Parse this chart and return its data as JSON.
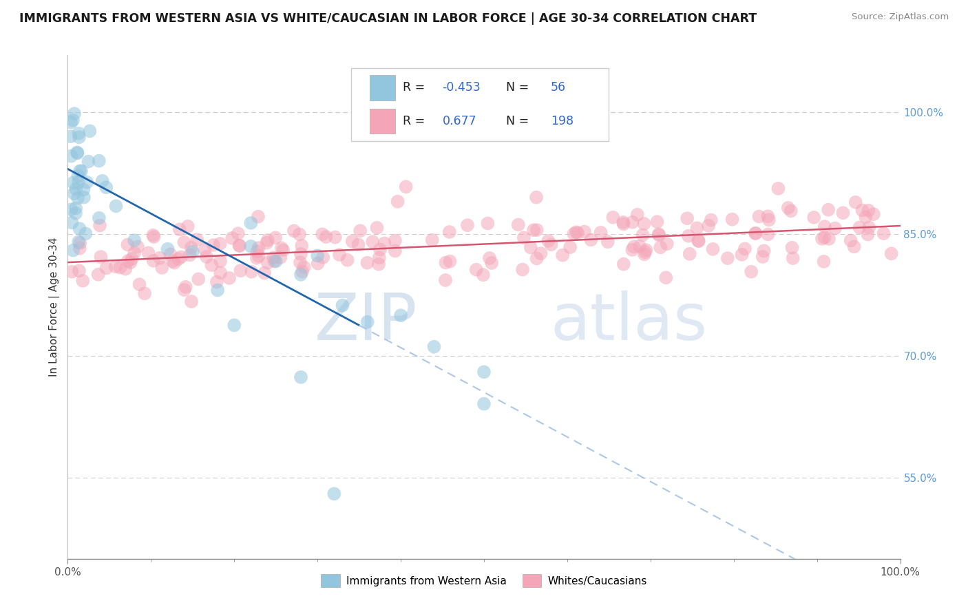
{
  "title": "IMMIGRANTS FROM WESTERN ASIA VS WHITE/CAUCASIAN IN LABOR FORCE | AGE 30-34 CORRELATION CHART",
  "source": "Source: ZipAtlas.com",
  "ylabel": "In Labor Force | Age 30-34",
  "right_yticks": [
    55.0,
    70.0,
    85.0,
    100.0
  ],
  "blue_R": -0.453,
  "blue_N": 56,
  "pink_R": 0.677,
  "pink_N": 198,
  "blue_color": "#92c5de",
  "pink_color": "#f4a6b8",
  "blue_line_color": "#2166ac",
  "pink_line_color": "#d6556e",
  "blue_dash_color": "#aac8e8",
  "legend_blue_label": "Immigrants from Western Asia",
  "legend_pink_label": "Whites/Caucasians",
  "watermark_zip": "ZIP",
  "watermark_atlas": "atlas",
  "xlim": [
    0,
    100
  ],
  "ylim": [
    45,
    107
  ],
  "background_color": "#ffffff",
  "grid_color": "#cccccc",
  "blue_line_intercept": 93.0,
  "blue_line_slope": -0.55,
  "pink_line_intercept": 81.5,
  "pink_line_slope": 0.045,
  "blue_solid_end": 35,
  "blue_dash_start": 35
}
